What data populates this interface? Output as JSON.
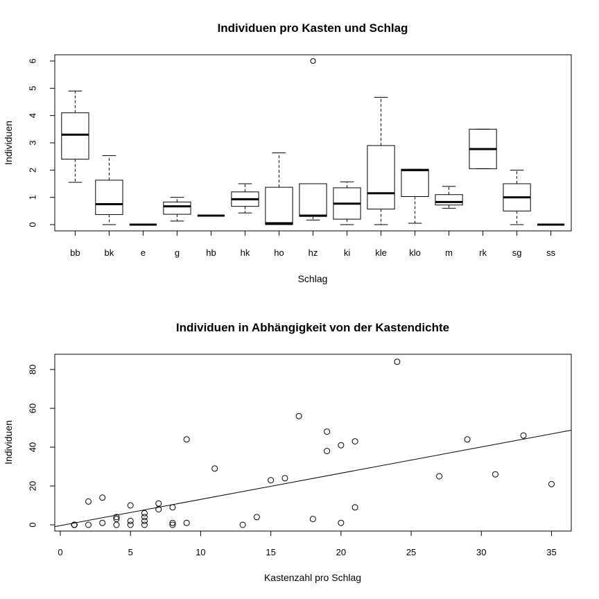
{
  "chart_data": [
    {
      "type": "box",
      "title": "Individuen pro Kasten und Schlag",
      "xlabel": "Schlag",
      "ylabel": "Individuen",
      "ylim": [
        0,
        6
      ],
      "yticks": [
        0,
        1,
        2,
        3,
        4,
        5,
        6
      ],
      "grid": false,
      "boxes": [
        {
          "name": "bb",
          "min": 1.55,
          "q1": 2.4,
          "median": 3.3,
          "q3": 4.1,
          "max": 4.9
        },
        {
          "name": "bk",
          "min": 0.0,
          "q1": 0.37,
          "median": 0.75,
          "q3": 1.63,
          "max": 2.53
        },
        {
          "name": "e",
          "min": 0.0,
          "q1": 0.0,
          "median": 0.0,
          "q3": 0.0,
          "max": 0.0
        },
        {
          "name": "g",
          "min": 0.13,
          "q1": 0.38,
          "median": 0.67,
          "q3": 0.83,
          "max": 1.0
        },
        {
          "name": "hb",
          "min": 0.33,
          "q1": 0.33,
          "median": 0.33,
          "q3": 0.33,
          "max": 0.33
        },
        {
          "name": "hk",
          "min": 0.43,
          "q1": 0.67,
          "median": 0.93,
          "q3": 1.2,
          "max": 1.5
        },
        {
          "name": "ho",
          "min": 0.0,
          "q1": 0.0,
          "median": 0.05,
          "q3": 1.37,
          "max": 2.63
        },
        {
          "name": "hz",
          "min": 0.17,
          "q1": 0.3,
          "median": 0.33,
          "q3": 1.5,
          "max": 1.5,
          "outliers": [
            6.0
          ]
        },
        {
          "name": "ki",
          "min": 0.0,
          "q1": 0.2,
          "median": 0.77,
          "q3": 1.35,
          "max": 1.57
        },
        {
          "name": "kle",
          "min": 0.0,
          "q1": 0.57,
          "median": 1.15,
          "q3": 2.9,
          "max": 4.67
        },
        {
          "name": "klo",
          "min": 0.05,
          "q1": 1.03,
          "median": 2.0,
          "q3": 2.03,
          "max": 2.03
        },
        {
          "name": "m",
          "min": 0.6,
          "q1": 0.72,
          "median": 0.83,
          "q3": 1.1,
          "max": 1.4
        },
        {
          "name": "rk",
          "min": 2.05,
          "q1": 2.05,
          "median": 2.77,
          "q3": 3.5,
          "max": 3.5
        },
        {
          "name": "sg",
          "min": 0.0,
          "q1": 0.5,
          "median": 1.0,
          "q3": 1.5,
          "max": 2.0
        },
        {
          "name": "ss",
          "min": 0.0,
          "q1": 0.0,
          "median": 0.0,
          "q3": 0.0,
          "max": 0.0
        }
      ]
    },
    {
      "type": "scatter",
      "title": "Individuen in Abhängigkeit von der Kastendichte",
      "xlabel": "Kastenzahl pro Schlag",
      "ylabel": "Individuen",
      "xlim": [
        0,
        36
      ],
      "ylim": [
        0,
        85
      ],
      "xticks": [
        0,
        5,
        10,
        15,
        20,
        25,
        30,
        35
      ],
      "yticks": [
        0,
        20,
        40,
        60,
        80
      ],
      "grid": false,
      "points": [
        [
          1,
          0
        ],
        [
          1,
          0
        ],
        [
          1,
          0
        ],
        [
          1,
          0
        ],
        [
          2,
          12
        ],
        [
          2,
          0
        ],
        [
          3,
          14
        ],
        [
          3,
          1
        ],
        [
          4,
          4
        ],
        [
          4,
          3
        ],
        [
          4,
          0
        ],
        [
          5,
          10
        ],
        [
          5,
          2
        ],
        [
          5,
          0
        ],
        [
          6,
          6
        ],
        [
          6,
          4
        ],
        [
          6,
          2
        ],
        [
          6,
          0
        ],
        [
          7,
          11
        ],
        [
          7,
          8
        ],
        [
          8,
          9
        ],
        [
          8,
          1
        ],
        [
          8,
          0
        ],
        [
          9,
          44
        ],
        [
          9,
          1
        ],
        [
          11,
          29
        ],
        [
          13,
          0
        ],
        [
          14,
          4
        ],
        [
          15,
          23
        ],
        [
          16,
          24
        ],
        [
          17,
          56
        ],
        [
          18,
          3
        ],
        [
          19,
          48
        ],
        [
          19,
          38
        ],
        [
          20,
          41
        ],
        [
          20,
          1
        ],
        [
          21,
          43
        ],
        [
          21,
          9
        ],
        [
          24,
          84
        ],
        [
          27,
          25
        ],
        [
          29,
          44
        ],
        [
          31,
          26
        ],
        [
          33,
          46
        ],
        [
          35,
          21
        ]
      ],
      "regression_line": {
        "intercept": -0.4,
        "slope": 1.35
      }
    }
  ]
}
